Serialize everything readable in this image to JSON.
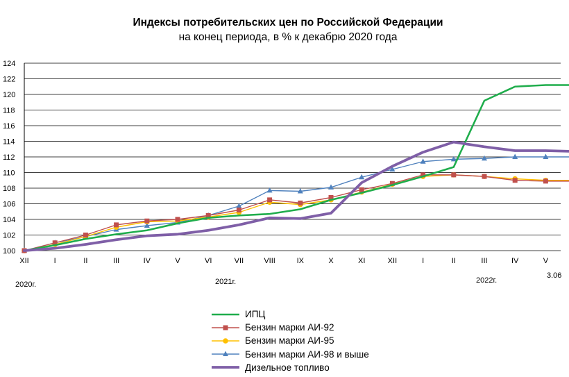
{
  "chart_data": {
    "type": "line",
    "title": "Индексы потребительских цен по Российской Федерации",
    "subtitle": "на конец периода, в % к декабрю 2020 года",
    "categories": [
      "XII",
      "I",
      "II",
      "III",
      "IV",
      "V",
      "VI",
      "VII",
      "VIII",
      "IX",
      "X",
      "XI",
      "XII",
      "I",
      "II",
      "III",
      "IV",
      "V",
      "3.06"
    ],
    "x_tick_labels": [
      "XII",
      "I",
      "II",
      "III",
      "IV",
      "V",
      "VI",
      "VII",
      "VIII",
      "IX",
      "X",
      "XI",
      "XII",
      "I",
      "II",
      "III",
      "IV",
      "V"
    ],
    "year_labels": [
      "2020г.",
      "2021г.",
      "2022г.",
      "3.06"
    ],
    "ylim": [
      100,
      124
    ],
    "yticks": [
      100,
      102,
      104,
      106,
      108,
      110,
      112,
      114,
      116,
      118,
      120,
      122,
      124
    ],
    "grid": "horizontal",
    "legend_position": "bottom",
    "series": [
      {
        "name": "ИПЦ",
        "color": "#1fad4c",
        "marker": "none",
        "values": [
          100,
          100.7,
          101.5,
          102.1,
          102.6,
          103.5,
          104.2,
          104.5,
          104.7,
          105.3,
          106.5,
          107.4,
          108.4,
          109.5,
          110.7,
          119.2,
          121.0,
          121.2,
          121.2
        ]
      },
      {
        "name": "Бензин марки АИ-92",
        "color": "#c0504d",
        "marker": "square",
        "values": [
          100,
          101.0,
          102.0,
          103.3,
          103.8,
          104.0,
          104.5,
          105.2,
          106.5,
          106.1,
          106.8,
          107.8,
          108.6,
          109.7,
          109.7,
          109.5,
          109.0,
          108.9,
          108.9
        ]
      },
      {
        "name": "Бензин марки АИ-95",
        "color": "#ffc000",
        "marker": "circle",
        "values": [
          100,
          100.8,
          101.8,
          103.0,
          103.7,
          103.8,
          104.3,
          104.9,
          106.2,
          105.9,
          106.5,
          107.5,
          108.5,
          109.5,
          109.7,
          109.5,
          109.2,
          109.0,
          109.0
        ]
      },
      {
        "name": "Бензин марки АИ-98 и  выше",
        "color": "#4f81bd",
        "marker": "triangle",
        "values": [
          100,
          101.0,
          101.8,
          102.7,
          103.2,
          103.6,
          104.5,
          105.7,
          107.7,
          107.6,
          108.1,
          109.4,
          110.4,
          111.4,
          111.7,
          111.8,
          112.0,
          112.0,
          112.0
        ]
      },
      {
        "name": "Дизельное топливо",
        "color": "#7f5fa7",
        "marker": "none",
        "thick": true,
        "values": [
          100,
          100.3,
          100.8,
          101.4,
          101.9,
          102.1,
          102.6,
          103.3,
          104.2,
          104.1,
          104.8,
          108.7,
          110.8,
          112.6,
          113.9,
          113.3,
          112.8,
          112.8,
          112.7
        ]
      }
    ]
  }
}
